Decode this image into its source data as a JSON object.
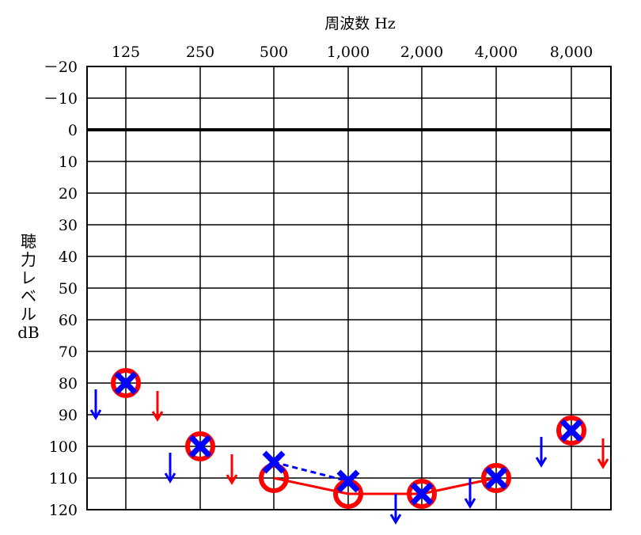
{
  "chart_data": {
    "type": "scatter",
    "title": "周波数 Hz",
    "xlabel": "周波数 Hz",
    "ylabel_chars": [
      "聴",
      "力",
      "レ",
      "ベ",
      "ル",
      "dB"
    ],
    "x_categories": [
      "125",
      "250",
      "500",
      "1,000",
      "2,000",
      "4,000",
      "8,000"
    ],
    "y_ticks": [
      "－20",
      "－10",
      "0",
      "10",
      "20",
      "30",
      "40",
      "50",
      "60",
      "70",
      "80",
      "90",
      "100",
      "110",
      "120"
    ],
    "ylim": [
      -20,
      120
    ],
    "y_inverted": true,
    "grid": true,
    "series": [
      {
        "ear": "right",
        "marker": "circle",
        "color": "#ff0000",
        "line": "solid",
        "points": [
          {
            "x": "125",
            "y": 80,
            "scale_out": true
          },
          {
            "x": "250",
            "y": 100,
            "scale_out": true
          },
          {
            "x": "500",
            "y": 110
          },
          {
            "x": "1,000",
            "y": 115
          },
          {
            "x": "2,000",
            "y": 115
          },
          {
            "x": "4,000",
            "y": 110
          },
          {
            "x": "8,000",
            "y": 95,
            "scale_out": true
          }
        ],
        "connected": [
          "500",
          "1,000",
          "2,000",
          "4,000"
        ]
      },
      {
        "ear": "left",
        "marker": "cross",
        "color": "#0000ff",
        "line": "dashed",
        "points": [
          {
            "x": "125",
            "y": 80,
            "scale_out": true
          },
          {
            "x": "250",
            "y": 100,
            "scale_out": true
          },
          {
            "x": "500",
            "y": 105
          },
          {
            "x": "1,000",
            "y": 111
          },
          {
            "x": "2,000",
            "y": 115,
            "scale_out": true
          },
          {
            "x": "4,000",
            "y": 110,
            "scale_out": true
          },
          {
            "x": "8,000",
            "y": 95,
            "scale_out": true
          }
        ],
        "connected": [
          "500",
          "1,000"
        ]
      }
    ]
  }
}
